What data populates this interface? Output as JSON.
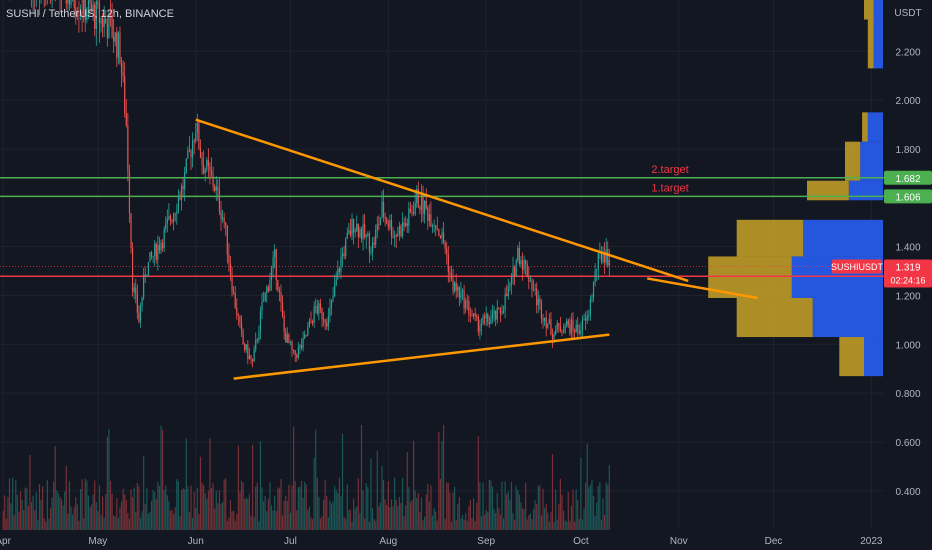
{
  "header": {
    "ticker": "SUSHI / TetherUS, 12h, BINANCE"
  },
  "colors": {
    "background": "#131722",
    "up": "#26a69a",
    "down": "#ef5350",
    "trendline": "#ff9800",
    "target": "#4caf50",
    "price_line": "#f23645",
    "vp_up": "#2962ff",
    "vp_down": "#c9a227"
  },
  "chart_data": {
    "type": "candlestick",
    "symbol": "SUSHIUSDT",
    "y_axis": {
      "unit": "USDT",
      "ticks": [
        "2.200",
        "2.000",
        "1.800",
        "1.400",
        "1.200",
        "1.000",
        "0.800",
        "0.600",
        "0.400"
      ],
      "tick_values": [
        2.2,
        2.0,
        1.8,
        1.4,
        1.2,
        1.0,
        0.8,
        0.6,
        0.4
      ],
      "ylim": [
        0.24,
        2.41
      ]
    },
    "x_axis": {
      "ticks": [
        "Apr",
        "May",
        "Jun",
        "Jul",
        "Aug",
        "Sep",
        "Oct",
        "Nov",
        "Dec",
        "2023"
      ],
      "tick_dates": [
        "2022-04-01",
        "2022-05-01",
        "2022-06-01",
        "2022-07-01",
        "2022-08-01",
        "2022-09-01",
        "2022-10-01",
        "2022-11-01",
        "2022-12-01",
        "2023-01-01"
      ],
      "xlim": [
        "2022-03-31",
        "2023-01-05"
      ]
    },
    "price_path": [
      [
        "2022-04-01",
        2.55
      ],
      [
        "2022-04-20",
        2.45
      ],
      [
        "2022-05-05",
        2.3
      ],
      [
        "2022-05-08",
        2.2
      ],
      [
        "2022-05-10",
        1.9
      ],
      [
        "2022-05-12",
        1.25
      ],
      [
        "2022-05-14",
        1.1
      ],
      [
        "2022-05-16",
        1.3
      ],
      [
        "2022-05-22",
        1.45
      ],
      [
        "2022-05-28",
        1.65
      ],
      [
        "2022-06-01",
        1.9
      ],
      [
        "2022-06-03",
        1.75
      ],
      [
        "2022-06-07",
        1.65
      ],
      [
        "2022-06-10",
        1.5
      ],
      [
        "2022-06-13",
        1.2
      ],
      [
        "2022-06-16",
        1.0
      ],
      [
        "2022-06-19",
        0.92
      ],
      [
        "2022-06-22",
        1.15
      ],
      [
        "2022-06-26",
        1.35
      ],
      [
        "2022-06-29",
        1.05
      ],
      [
        "2022-07-02",
        0.95
      ],
      [
        "2022-07-05",
        1.0
      ],
      [
        "2022-07-09",
        1.15
      ],
      [
        "2022-07-13",
        1.1
      ],
      [
        "2022-07-17",
        1.35
      ],
      [
        "2022-07-21",
        1.5
      ],
      [
        "2022-07-24",
        1.45
      ],
      [
        "2022-07-27",
        1.4
      ],
      [
        "2022-07-30",
        1.55
      ],
      [
        "2022-08-03",
        1.45
      ],
      [
        "2022-08-07",
        1.5
      ],
      [
        "2022-08-10",
        1.6
      ],
      [
        "2022-08-13",
        1.55
      ],
      [
        "2022-08-16",
        1.5
      ],
      [
        "2022-08-19",
        1.4
      ],
      [
        "2022-08-21",
        1.25
      ],
      [
        "2022-08-25",
        1.18
      ],
      [
        "2022-08-29",
        1.08
      ],
      [
        "2022-09-02",
        1.1
      ],
      [
        "2022-09-05",
        1.12
      ],
      [
        "2022-09-09",
        1.25
      ],
      [
        "2022-09-11",
        1.38
      ],
      [
        "2022-09-14",
        1.3
      ],
      [
        "2022-09-18",
        1.15
      ],
      [
        "2022-09-22",
        1.05
      ],
      [
        "2022-09-26",
        1.08
      ],
      [
        "2022-09-30",
        1.06
      ],
      [
        "2022-10-03",
        1.1
      ],
      [
        "2022-10-06",
        1.32
      ],
      [
        "2022-10-08",
        1.38
      ],
      [
        "2022-10-10",
        1.35
      ]
    ],
    "trendlines": [
      {
        "name": "descending resistance",
        "from": [
          "2022-06-01",
          1.92
        ],
        "to": [
          "2022-11-04",
          1.26
        ]
      },
      {
        "name": "ascending support",
        "from": [
          "2022-06-13",
          0.86
        ],
        "to": [
          "2022-10-10",
          1.04
        ]
      }
    ],
    "projection": {
      "name": "orange arrow",
      "from": [
        "2022-10-22",
        1.27
      ],
      "mid": [
        "2022-11-26",
        1.19
      ],
      "to": [
        "2022-11-26",
        1.12
      ]
    },
    "horizontal_levels": [
      {
        "label": "2.target",
        "value": 1.682
      },
      {
        "label": "1.target",
        "value": 1.606
      },
      {
        "label": "",
        "value": 1.279
      }
    ],
    "price_labels": [
      {
        "text": "1.682",
        "value": 1.682
      },
      {
        "text": "1.606",
        "value": 1.606
      }
    ],
    "last_price": {
      "symbol_label": "SUSHIUSDT",
      "value": 1.319,
      "text": "1.319",
      "countdown": "02:24:16"
    },
    "volume_profile": [
      {
        "price_low": 2.33,
        "price_high": 2.48,
        "up": 0.05,
        "down": 0.05
      },
      {
        "price_low": 2.13,
        "price_high": 2.33,
        "up": 0.05,
        "down": 0.03
      },
      {
        "price_low": 1.83,
        "price_high": 1.95,
        "up": 0.08,
        "down": 0.03
      },
      {
        "price_low": 1.67,
        "price_high": 1.83,
        "up": 0.12,
        "down": 0.08
      },
      {
        "price_low": 1.59,
        "price_high": 1.67,
        "up": 0.18,
        "down": 0.22
      },
      {
        "price_low": 1.36,
        "price_high": 1.51,
        "up": 0.42,
        "down": 0.35
      },
      {
        "price_low": 1.19,
        "price_high": 1.36,
        "up": 0.48,
        "down": 0.44
      },
      {
        "price_low": 1.03,
        "price_high": 1.19,
        "up": 0.37,
        "down": 0.4
      },
      {
        "price_low": 0.87,
        "price_high": 1.03,
        "up": 0.1,
        "down": 0.13
      }
    ],
    "volume_note": "volume histogram at bottom of chart (unlabeled)"
  }
}
